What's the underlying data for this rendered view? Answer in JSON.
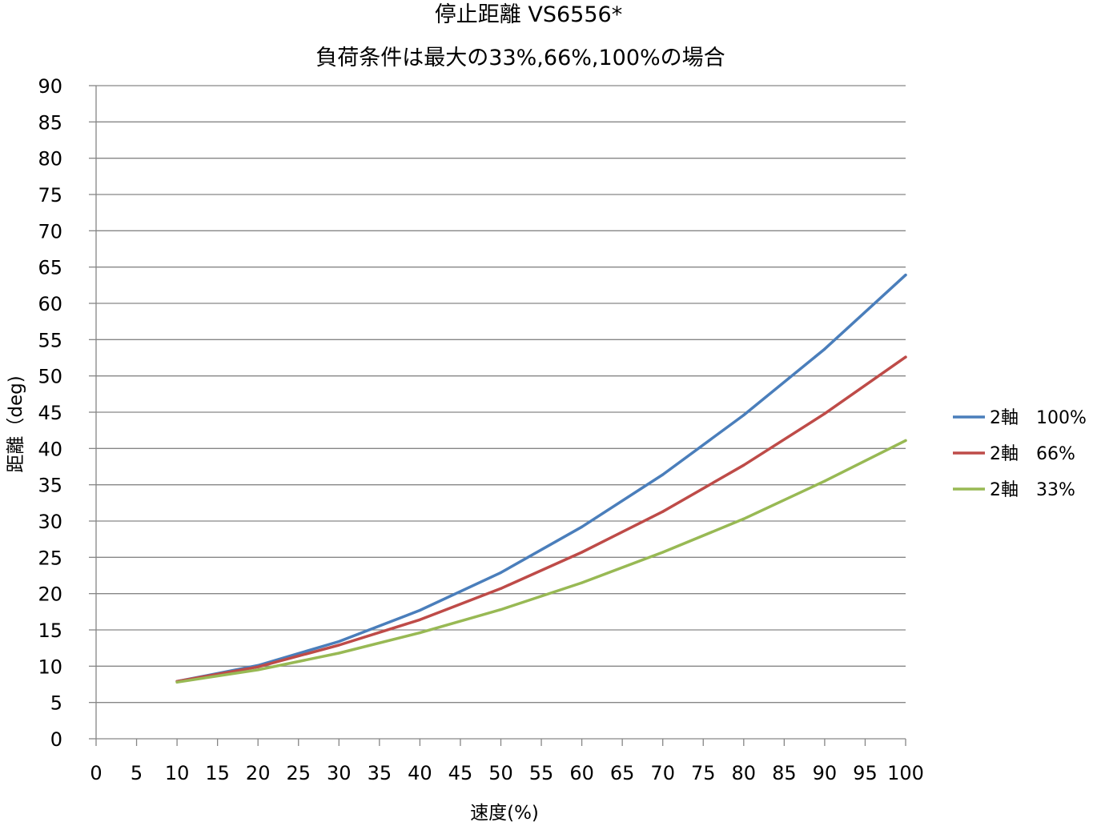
{
  "chart_data": {
    "type": "line",
    "title": "停止距離 VS6556*",
    "subtitle": "負荷条件は最大の33%,66%,100%の場合",
    "xlabel": "速度(%)",
    "ylabel": "距離（deg)",
    "xlim": [
      0,
      100
    ],
    "ylim": [
      0,
      90
    ],
    "x_ticks": [
      0,
      5,
      10,
      15,
      20,
      25,
      30,
      35,
      40,
      45,
      50,
      55,
      60,
      65,
      70,
      75,
      80,
      85,
      90,
      95,
      100
    ],
    "y_ticks": [
      0,
      5,
      10,
      15,
      20,
      25,
      30,
      35,
      40,
      45,
      50,
      55,
      60,
      65,
      70,
      75,
      80,
      85,
      90
    ],
    "grid": true,
    "legend_position": "right",
    "x": [
      10,
      20,
      30,
      40,
      50,
      60,
      70,
      80,
      90,
      100
    ],
    "series": [
      {
        "name": "2軸　100%",
        "color": "#4a7ebb",
        "values": [
          7.9,
          10.1,
          13.4,
          17.7,
          22.9,
          29.2,
          36.4,
          44.6,
          53.7,
          63.9
        ]
      },
      {
        "name": "2軸　66%",
        "color": "#be4b48",
        "values": [
          7.9,
          9.9,
          12.9,
          16.4,
          20.7,
          25.7,
          31.3,
          37.7,
          44.8,
          52.6
        ]
      },
      {
        "name": "2軸　33%",
        "color": "#98b954",
        "values": [
          7.8,
          9.5,
          11.8,
          14.6,
          17.8,
          21.5,
          25.7,
          30.3,
          35.5,
          41.1
        ]
      }
    ]
  }
}
